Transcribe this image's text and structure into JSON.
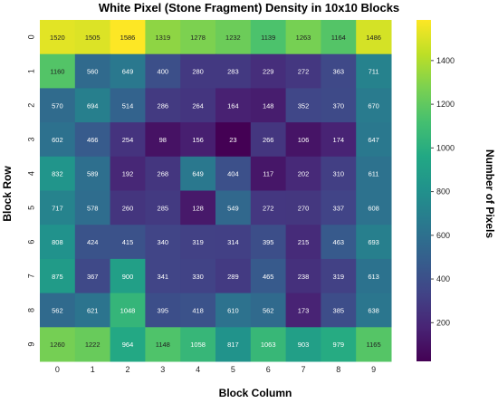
{
  "chart_data": {
    "type": "heatmap",
    "title": "White Pixel (Stone Fragment) Density in 10x10 Blocks",
    "xlabel": "Block Column",
    "ylabel": "Block Row",
    "colorbar_label": "Number of Pixels",
    "colormap": "viridis",
    "x_ticks": [
      "0",
      "1",
      "2",
      "3",
      "4",
      "5",
      "6",
      "7",
      "8",
      "9"
    ],
    "y_ticks": [
      "0",
      "1",
      "2",
      "3",
      "4",
      "5",
      "6",
      "7",
      "8",
      "9"
    ],
    "value_range": [
      23,
      1586
    ],
    "colorbar_ticks": [
      200,
      400,
      600,
      800,
      1000,
      1200,
      1400
    ],
    "values": [
      [
        1520,
        1505,
        1586,
        1319,
        1278,
        1232,
        1139,
        1263,
        1164,
        1486
      ],
      [
        1160,
        560,
        649,
        400,
        280,
        283,
        229,
        272,
        363,
        711
      ],
      [
        570,
        694,
        514,
        286,
        264,
        164,
        148,
        352,
        370,
        670
      ],
      [
        602,
        466,
        254,
        98,
        156,
        23,
        266,
        106,
        174,
        647
      ],
      [
        832,
        589,
        192,
        268,
        649,
        404,
        117,
        202,
        310,
        611
      ],
      [
        717,
        578,
        260,
        285,
        128,
        549,
        272,
        270,
        337,
        608
      ],
      [
        808,
        424,
        415,
        340,
        319,
        314,
        395,
        215,
        463,
        693
      ],
      [
        875,
        367,
        900,
        341,
        330,
        289,
        465,
        238,
        319,
        613
      ],
      [
        562,
        621,
        1048,
        395,
        418,
        610,
        562,
        173,
        385,
        638
      ],
      [
        1260,
        1222,
        964,
        1148,
        1058,
        817,
        1063,
        903,
        979,
        1165
      ]
    ]
  }
}
